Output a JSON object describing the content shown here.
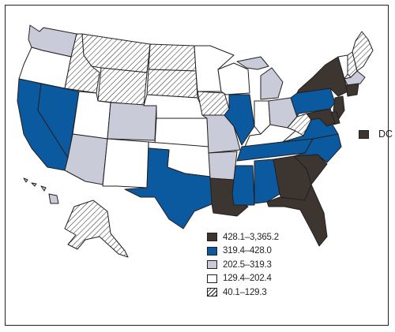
{
  "colors": {
    "dark": "#3d3530",
    "blue": "#0b5aa0",
    "gray": "#c9cbd8",
    "white": "#ffffff",
    "border": "#231f20",
    "hatch": "#231f20"
  },
  "legend": [
    {
      "label": "428.1–3,365.2",
      "cls": "dark"
    },
    {
      "label": "319.4–428.0",
      "cls": "blue"
    },
    {
      "label": "202.5–319.3",
      "cls": "gray"
    },
    {
      "label": "129.4–202.4",
      "cls": "white"
    },
    {
      "label": "40.1–129.3",
      "cls": "hatch"
    }
  ],
  "dc": {
    "label": "DC",
    "cls": "dark"
  },
  "states": {
    "WA": "gray",
    "OR": "white",
    "CA": "blue",
    "NV": "blue",
    "ID": "hatch",
    "MT": "hatch",
    "WY": "hatch",
    "UT": "white",
    "AZ": "gray",
    "CO": "gray",
    "NM": "white",
    "ND": "hatch",
    "SD": "hatch",
    "NE": "white",
    "KS": "white",
    "OK": "white",
    "TX": "blue",
    "MN": "white",
    "IA": "hatch",
    "MO": "gray",
    "AR": "gray",
    "LA": "dark",
    "WI": "white",
    "IL": "blue",
    "MS": "blue",
    "MI": "gray",
    "IN": "white",
    "KY": "white",
    "TN": "blue",
    "AL": "blue",
    "OH": "gray",
    "WV": "hatch",
    "GA": "dark",
    "FL": "dark",
    "SC": "dark",
    "NC": "blue",
    "VA": "blue",
    "PA": "blue",
    "NY": "dark",
    "ME": "hatch",
    "VT": "white",
    "NH": "hatch",
    "MA": "gray",
    "CT": "dark",
    "NJ": "dark",
    "DE": "dark",
    "MD": "dark",
    "AK": "hatch",
    "HI": "gray"
  }
}
